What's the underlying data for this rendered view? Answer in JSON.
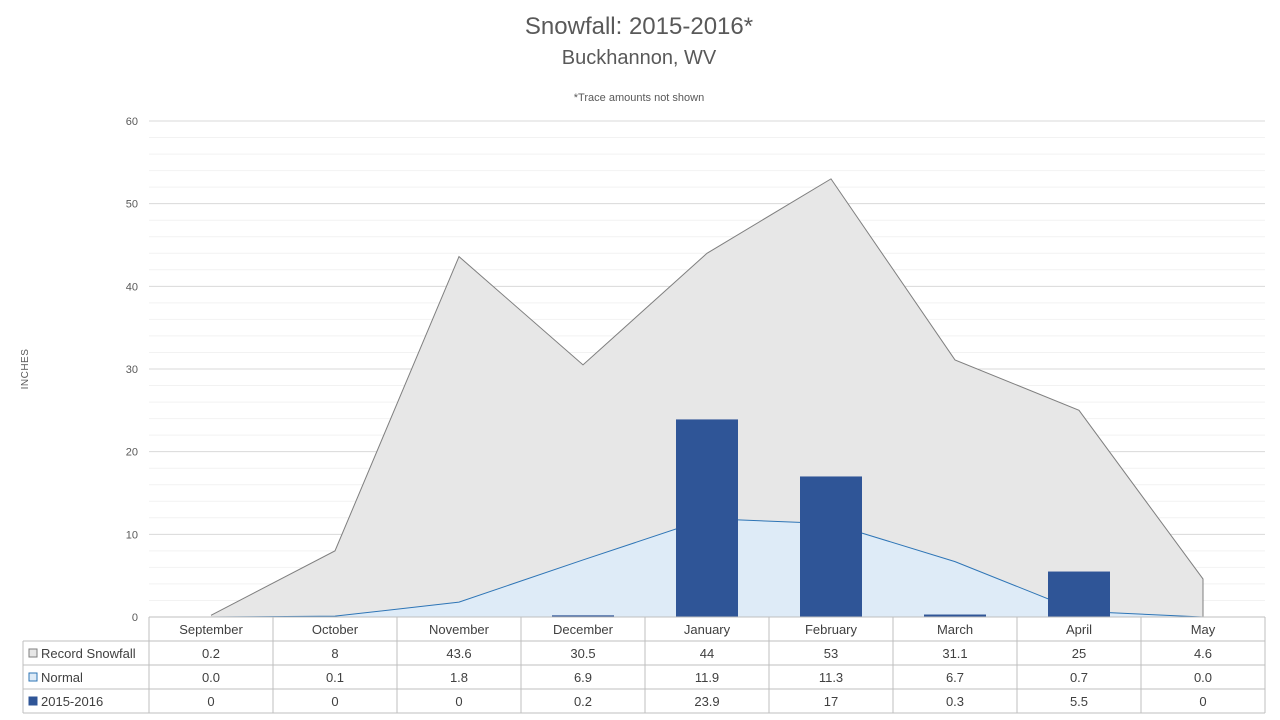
{
  "chart_data": {
    "type": "area",
    "title": "Snowfall: 2015-2016*",
    "subtitle": "Buckhannon, WV",
    "note": "*Trace amounts not shown",
    "ylabel": "INCHES",
    "ylim": [
      0,
      60
    ],
    "yticks": [
      0,
      10,
      20,
      30,
      40,
      50,
      60
    ],
    "grid": true,
    "legend": "data-table-left",
    "categories": [
      "September",
      "October",
      "November",
      "December",
      "January",
      "February",
      "March",
      "April",
      "May"
    ],
    "series": [
      {
        "name": "Record Snowfall",
        "type": "area",
        "color": "#e7e7e7",
        "line_color": "#7f7f7f",
        "values": [
          0.2,
          8,
          43.6,
          30.5,
          44,
          53,
          31.1,
          25,
          4.6
        ],
        "labels": [
          "0.2",
          "8",
          "43.6",
          "30.5",
          "44",
          "53",
          "31.1",
          "25",
          "4.6"
        ]
      },
      {
        "name": "Normal",
        "type": "area",
        "color": "#deebf7",
        "line_color": "#2e75b6",
        "values": [
          0.0,
          0.1,
          1.8,
          6.9,
          11.9,
          11.3,
          6.7,
          0.7,
          0.0
        ],
        "labels": [
          "0.0",
          "0.1",
          "1.8",
          "6.9",
          "11.9",
          "11.3",
          "6.7",
          "0.7",
          "0.0"
        ]
      },
      {
        "name": "2015-2016",
        "type": "bar",
        "color": "#2f5597",
        "values": [
          0,
          0,
          0,
          0.2,
          23.9,
          17,
          0.3,
          5.5,
          0
        ],
        "labels": [
          "0",
          "0",
          "0",
          "0.2",
          "23.9",
          "17",
          "0.3",
          "5.5",
          "0"
        ]
      }
    ]
  }
}
